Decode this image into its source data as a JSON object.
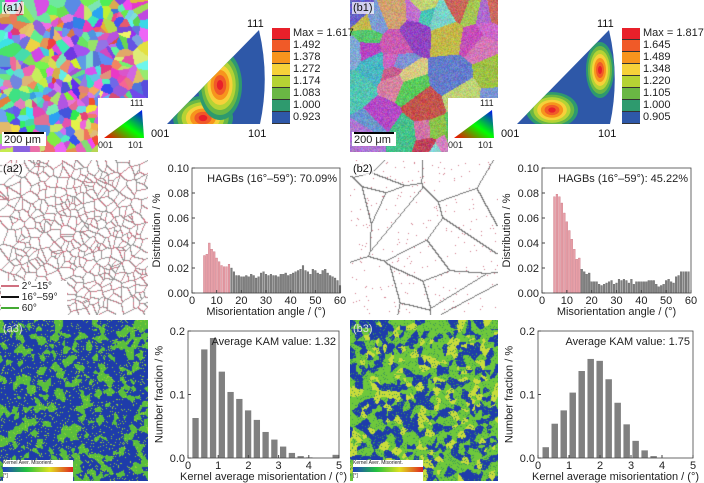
{
  "panels": {
    "a1": {
      "label": "(a1)",
      "scale": "200 μm",
      "ipf_key": {
        "top": "111",
        "left": "001",
        "right": "101"
      }
    },
    "b1": {
      "label": "(b1)",
      "scale": "200 μm",
      "ipf_key": {
        "top": "111",
        "left": "001",
        "right": "101"
      }
    },
    "a2": {
      "label": "(a2)",
      "legend": [
        "2°–15°",
        "16°–59°",
        "60°"
      ],
      "legend_colors": [
        "#d07080",
        "#111111",
        "#44aa33"
      ]
    },
    "b2": {
      "label": "(b2)"
    },
    "a3": {
      "label": "(a3)",
      "kam_legend": "Kernel Aver. Misorient.",
      "kam_unit": "[°]"
    },
    "b3": {
      "label": "(b3)",
      "kam_legend": "Kernel Aver. Misorient.",
      "kam_unit": "[°]"
    }
  },
  "ipf": [
    {
      "id": "a1",
      "corners": {
        "top": "111",
        "left": "001",
        "right": "101"
      },
      "max": "Max = 1.617",
      "levels": [
        "1.492",
        "1.378",
        "1.272",
        "1.174",
        "1.083",
        "1.000",
        "0.923"
      ]
    },
    {
      "id": "b1",
      "corners": {
        "top": "111",
        "left": "001",
        "right": "101"
      },
      "max": "Max = 1.817",
      "levels": [
        "1.645",
        "1.489",
        "1.348",
        "1.220",
        "1.105",
        "1.000",
        "0.905"
      ]
    }
  ],
  "level_colors": [
    "#e8202a",
    "#f05a28",
    "#f7941d",
    "#f6d13a",
    "#b5d334",
    "#6ab744",
    "#2e9a6e",
    "#2e58a8"
  ],
  "chart_data": [
    {
      "id": "a2",
      "type": "bar",
      "annotation": "HAGBs (16°–59°): 70.09%",
      "xlabel": "Misorientation angle / (°)",
      "ylabel": "Distribution / %",
      "xlim": [
        0,
        60
      ],
      "ylim": [
        0,
        0.1
      ],
      "xticks": [
        "0",
        "10",
        "20",
        "30",
        "40",
        "50",
        "60"
      ],
      "yticks": [
        "0.00",
        "0.02",
        "0.04",
        "0.06",
        "0.08",
        "0.10"
      ],
      "x_start": 5,
      "x_step": 1,
      "highlight_below": 15.5,
      "colors": {
        "low": "#e8a0a8",
        "high": "#808080"
      },
      "values": [
        0.03,
        0.031,
        0.04,
        0.035,
        0.033,
        0.028,
        0.025,
        0.022,
        0.021,
        0.021,
        0.023,
        0.02,
        0.017,
        0.014,
        0.014,
        0.013,
        0.013,
        0.014,
        0.013,
        0.015,
        0.014,
        0.012,
        0.013,
        0.016,
        0.017,
        0.015,
        0.014,
        0.015,
        0.014,
        0.014,
        0.013,
        0.015,
        0.015,
        0.016,
        0.014,
        0.015,
        0.016,
        0.017,
        0.018,
        0.019,
        0.022,
        0.018,
        0.017,
        0.015,
        0.019,
        0.018,
        0.016,
        0.015,
        0.018,
        0.019,
        0.016,
        0.014,
        0.013,
        0.012,
        0.01,
        0.006
      ]
    },
    {
      "id": "b2",
      "type": "bar",
      "annotation": "HAGBs (16°–59°): 45.22%",
      "xlabel": "Misorientation angle / (°)",
      "ylabel": "Distribution / %",
      "xlim": [
        0,
        60
      ],
      "ylim": [
        0,
        0.1
      ],
      "xticks": [
        "0",
        "10",
        "20",
        "30",
        "40",
        "50",
        "60"
      ],
      "yticks": [
        "0.00",
        "0.02",
        "0.04",
        "0.06",
        "0.08",
        "0.10"
      ],
      "x_start": 5,
      "x_step": 1,
      "highlight_below": 15.5,
      "colors": {
        "low": "#e8a0a8",
        "high": "#808080"
      },
      "values": [
        0.077,
        0.079,
        0.077,
        0.072,
        0.064,
        0.057,
        0.05,
        0.043,
        0.035,
        0.027,
        0.028,
        0.019,
        0.017,
        0.015,
        0.016,
        0.009,
        0.009,
        0.009,
        0.007,
        0.006,
        0.007,
        0.008,
        0.009,
        0.01,
        0.007,
        0.008,
        0.011,
        0.01,
        0.011,
        0.01,
        0.008,
        0.011,
        0.007,
        0.009,
        0.009,
        0.009,
        0.009,
        0.009,
        0.01,
        0.01,
        0.01,
        0.007,
        0.005,
        0.006,
        0.007,
        0.01,
        0.011,
        0.009,
        0.008,
        0.013,
        0.014,
        0.017,
        0.017,
        0.017,
        0.017
      ]
    },
    {
      "id": "a3",
      "type": "bar",
      "annotation": "Average KAM value: 1.32",
      "xlabel": "Kernel average misorientation / (°)",
      "ylabel": "Number fraction / %",
      "xlim": [
        0,
        5
      ],
      "ylim": [
        0,
        0.2
      ],
      "xticks": [
        "0",
        "1",
        "2",
        "3",
        "4",
        "5"
      ],
      "yticks": [
        "0.0",
        "0.1",
        "0.2"
      ],
      "x_start": 0.25,
      "x_step": 0.29,
      "highlight_below": -1,
      "colors": {
        "low": "#808080",
        "high": "#808080"
      },
      "values": [
        0.063,
        0.171,
        0.189,
        0.136,
        0.104,
        0.093,
        0.075,
        0.06,
        0.041,
        0.029,
        0.018,
        0.008,
        0.003,
        0.001,
        0,
        0,
        0.005
      ]
    },
    {
      "id": "b3",
      "type": "bar",
      "annotation": "Average KAM value: 1.75",
      "xlabel": "Kernel average misorientation / (°)",
      "ylabel": "Number fraction / %",
      "xlim": [
        0,
        5
      ],
      "ylim": [
        0,
        0.2
      ],
      "xticks": [
        "0",
        "1",
        "2",
        "3",
        "4",
        "5"
      ],
      "yticks": [
        "0.0",
        "0.1",
        "0.2"
      ],
      "x_start": 0.25,
      "x_step": 0.29,
      "highlight_below": -1,
      "colors": {
        "low": "#808080",
        "high": "#808080"
      },
      "values": [
        0.017,
        0.054,
        0.075,
        0.103,
        0.137,
        0.156,
        0.153,
        0.124,
        0.087,
        0.053,
        0.027,
        0.012,
        0.003,
        0,
        0,
        0,
        0
      ]
    }
  ]
}
